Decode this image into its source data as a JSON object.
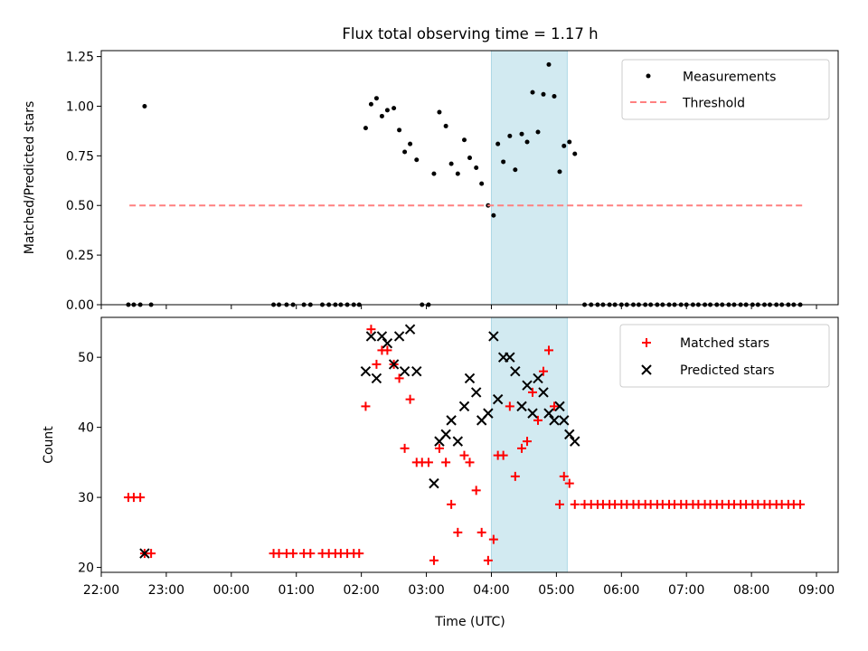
{
  "title": "Flux total observing time = 1.17 h",
  "colors": {
    "measurement": "#000000",
    "threshold": "#ff8080",
    "matched": "#ff0000",
    "predicted": "#000000",
    "span": "#add8e6"
  },
  "chart_data": [
    {
      "type": "scatter",
      "ylabel": "Matched/Predicted stars",
      "xlabel": "",
      "xlim": [
        "22:00",
        "09:20"
      ],
      "ylim": [
        0,
        1.28
      ],
      "yticks": [
        "0.00",
        "0.25",
        "0.50",
        "0.75",
        "1.00",
        "1.25"
      ],
      "legend_position": "top-right",
      "highlight_span": {
        "x0": "04:00",
        "x1": "05:10"
      },
      "series": [
        {
          "name": "Measurements",
          "marker": "dot",
          "points": [
            [
              "22:25",
              0
            ],
            [
              "22:30",
              0
            ],
            [
              "22:36",
              0
            ],
            [
              "22:40",
              1.0
            ],
            [
              "22:46",
              0
            ],
            [
              "00:39",
              0
            ],
            [
              "00:44",
              0
            ],
            [
              "00:51",
              0
            ],
            [
              "00:57",
              0
            ],
            [
              "01:07",
              0
            ],
            [
              "01:13",
              0
            ],
            [
              "01:24",
              0
            ],
            [
              "01:30",
              0
            ],
            [
              "01:36",
              0
            ],
            [
              "01:41",
              0
            ],
            [
              "01:47",
              0
            ],
            [
              "01:53",
              0
            ],
            [
              "01:58",
              0
            ],
            [
              "02:04",
              0.89
            ],
            [
              "02:09",
              1.01
            ],
            [
              "02:14",
              1.04
            ],
            [
              "02:19",
              0.95
            ],
            [
              "02:24",
              0.98
            ],
            [
              "02:30",
              0.99
            ],
            [
              "02:35",
              0.88
            ],
            [
              "02:40",
              0.77
            ],
            [
              "02:45",
              0.81
            ],
            [
              "02:51",
              0.73
            ],
            [
              "02:56",
              0
            ],
            [
              "03:02",
              0
            ],
            [
              "03:07",
              0.66
            ],
            [
              "03:12",
              0.97
            ],
            [
              "03:18",
              0.9
            ],
            [
              "03:23",
              0.71
            ],
            [
              "03:29",
              0.66
            ],
            [
              "03:35",
              0.83
            ],
            [
              "03:40",
              0.74
            ],
            [
              "03:46",
              0.69
            ],
            [
              "03:51",
              0.61
            ],
            [
              "03:57",
              0.5
            ],
            [
              "04:02",
              0.45
            ],
            [
              "04:06",
              0.81
            ],
            [
              "04:11",
              0.72
            ],
            [
              "04:17",
              0.85
            ],
            [
              "04:22",
              0.68
            ],
            [
              "04:28",
              0.86
            ],
            [
              "04:33",
              0.82
            ],
            [
              "04:38",
              1.07
            ],
            [
              "04:43",
              0.87
            ],
            [
              "04:48",
              1.06
            ],
            [
              "04:53",
              1.21
            ],
            [
              "04:58",
              1.05
            ],
            [
              "05:03",
              0.67
            ],
            [
              "05:07",
              0.8
            ],
            [
              "05:12",
              0.82
            ],
            [
              "05:17",
              0.76
            ],
            [
              "05:26",
              0
            ],
            [
              "05:32",
              0
            ],
            [
              "05:38",
              0
            ],
            [
              "05:43",
              0
            ],
            [
              "05:49",
              0
            ],
            [
              "05:54",
              0
            ],
            [
              "06:00",
              0
            ],
            [
              "06:05",
              0
            ],
            [
              "06:11",
              0
            ],
            [
              "06:16",
              0
            ],
            [
              "06:22",
              0
            ],
            [
              "06:27",
              0
            ],
            [
              "06:33",
              0
            ],
            [
              "06:38",
              0
            ],
            [
              "06:44",
              0
            ],
            [
              "06:49",
              0
            ],
            [
              "06:55",
              0
            ],
            [
              "07:00",
              0
            ],
            [
              "07:06",
              0
            ],
            [
              "07:11",
              0
            ],
            [
              "07:17",
              0
            ],
            [
              "07:22",
              0
            ],
            [
              "07:28",
              0
            ],
            [
              "07:33",
              0
            ],
            [
              "07:39",
              0
            ],
            [
              "07:44",
              0
            ],
            [
              "07:50",
              0
            ],
            [
              "07:55",
              0
            ],
            [
              "08:01",
              0
            ],
            [
              "08:06",
              0
            ],
            [
              "08:12",
              0
            ],
            [
              "08:17",
              0
            ],
            [
              "08:23",
              0
            ],
            [
              "08:28",
              0
            ],
            [
              "08:34",
              0
            ],
            [
              "08:39",
              0
            ],
            [
              "08:45",
              0
            ]
          ]
        },
        {
          "name": "Threshold",
          "style": "dashed-line",
          "points": [
            [
              "22:26",
              0.5
            ],
            [
              "08:48",
              0.5
            ]
          ]
        }
      ]
    },
    {
      "type": "scatter",
      "ylabel": "Count",
      "xlabel": "Time (UTC)",
      "xlim": [
        "22:00",
        "09:20"
      ],
      "ylim": [
        19.3,
        55.7
      ],
      "yticks": [
        "20",
        "30",
        "40",
        "50"
      ],
      "xticks": [
        "22:00",
        "23:00",
        "00:00",
        "01:00",
        "02:00",
        "03:00",
        "04:00",
        "05:00",
        "06:00",
        "07:00",
        "08:00",
        "09:00"
      ],
      "legend_position": "top-right",
      "highlight_span": {
        "x0": "04:00",
        "x1": "05:10"
      },
      "series": [
        {
          "name": "Matched stars",
          "marker": "plus",
          "points": [
            [
              "22:25",
              30
            ],
            [
              "22:30",
              30
            ],
            [
              "22:36",
              30
            ],
            [
              "22:40",
              22
            ],
            [
              "22:46",
              22
            ],
            [
              "00:39",
              22
            ],
            [
              "00:44",
              22
            ],
            [
              "00:51",
              22
            ],
            [
              "00:57",
              22
            ],
            [
              "01:07",
              22
            ],
            [
              "01:13",
              22
            ],
            [
              "01:24",
              22
            ],
            [
              "01:30",
              22
            ],
            [
              "01:36",
              22
            ],
            [
              "01:41",
              22
            ],
            [
              "01:47",
              22
            ],
            [
              "01:53",
              22
            ],
            [
              "01:58",
              22
            ],
            [
              "02:04",
              43
            ],
            [
              "02:09",
              54
            ],
            [
              "02:14",
              49
            ],
            [
              "02:19",
              51
            ],
            [
              "02:24",
              51
            ],
            [
              "02:30",
              49
            ],
            [
              "02:35",
              47
            ],
            [
              "02:40",
              37
            ],
            [
              "02:45",
              44
            ],
            [
              "02:51",
              35
            ],
            [
              "02:56",
              35
            ],
            [
              "03:02",
              35
            ],
            [
              "03:07",
              21
            ],
            [
              "03:12",
              37
            ],
            [
              "03:18",
              35
            ],
            [
              "03:23",
              29
            ],
            [
              "03:29",
              25
            ],
            [
              "03:35",
              36
            ],
            [
              "03:40",
              35
            ],
            [
              "03:46",
              31
            ],
            [
              "03:51",
              25
            ],
            [
              "03:57",
              21
            ],
            [
              "04:02",
              24
            ],
            [
              "04:06",
              36
            ],
            [
              "04:11",
              36
            ],
            [
              "04:17",
              43
            ],
            [
              "04:22",
              33
            ],
            [
              "04:28",
              37
            ],
            [
              "04:33",
              38
            ],
            [
              "04:38",
              45
            ],
            [
              "04:43",
              41
            ],
            [
              "04:48",
              48
            ],
            [
              "04:53",
              51
            ],
            [
              "04:58",
              43
            ],
            [
              "05:03",
              29
            ],
            [
              "05:07",
              33
            ],
            [
              "05:12",
              32
            ],
            [
              "05:17",
              29
            ],
            [
              "05:26",
              29
            ],
            [
              "05:32",
              29
            ],
            [
              "05:38",
              29
            ],
            [
              "05:43",
              29
            ],
            [
              "05:49",
              29
            ],
            [
              "05:54",
              29
            ],
            [
              "06:00",
              29
            ],
            [
              "06:05",
              29
            ],
            [
              "06:11",
              29
            ],
            [
              "06:16",
              29
            ],
            [
              "06:22",
              29
            ],
            [
              "06:27",
              29
            ],
            [
              "06:33",
              29
            ],
            [
              "06:38",
              29
            ],
            [
              "06:44",
              29
            ],
            [
              "06:49",
              29
            ],
            [
              "06:55",
              29
            ],
            [
              "07:00",
              29
            ],
            [
              "07:06",
              29
            ],
            [
              "07:11",
              29
            ],
            [
              "07:17",
              29
            ],
            [
              "07:22",
              29
            ],
            [
              "07:28",
              29
            ],
            [
              "07:33",
              29
            ],
            [
              "07:39",
              29
            ],
            [
              "07:44",
              29
            ],
            [
              "07:50",
              29
            ],
            [
              "07:55",
              29
            ],
            [
              "08:01",
              29
            ],
            [
              "08:06",
              29
            ],
            [
              "08:12",
              29
            ],
            [
              "08:17",
              29
            ],
            [
              "08:23",
              29
            ],
            [
              "08:28",
              29
            ],
            [
              "08:34",
              29
            ],
            [
              "08:39",
              29
            ],
            [
              "08:45",
              29
            ]
          ]
        },
        {
          "name": "Predicted stars",
          "marker": "x",
          "points": [
            [
              "22:40",
              22
            ],
            [
              "02:04",
              48
            ],
            [
              "02:09",
              53
            ],
            [
              "02:14",
              47
            ],
            [
              "02:19",
              53
            ],
            [
              "02:24",
              52
            ],
            [
              "02:30",
              49
            ],
            [
              "02:35",
              53
            ],
            [
              "02:40",
              48
            ],
            [
              "02:45",
              54
            ],
            [
              "02:51",
              48
            ],
            [
              "03:07",
              32
            ],
            [
              "03:12",
              38
            ],
            [
              "03:18",
              39
            ],
            [
              "03:23",
              41
            ],
            [
              "03:29",
              38
            ],
            [
              "03:35",
              43
            ],
            [
              "03:40",
              47
            ],
            [
              "03:46",
              45
            ],
            [
              "03:51",
              41
            ],
            [
              "03:57",
              42
            ],
            [
              "04:02",
              53
            ],
            [
              "04:06",
              44
            ],
            [
              "04:11",
              50
            ],
            [
              "04:17",
              50
            ],
            [
              "04:22",
              48
            ],
            [
              "04:28",
              43
            ],
            [
              "04:33",
              46
            ],
            [
              "04:38",
              42
            ],
            [
              "04:43",
              47
            ],
            [
              "04:48",
              45
            ],
            [
              "04:53",
              42
            ],
            [
              "04:58",
              41
            ],
            [
              "05:03",
              43
            ],
            [
              "05:07",
              41
            ],
            [
              "05:12",
              39
            ],
            [
              "05:17",
              38
            ]
          ]
        }
      ]
    }
  ]
}
